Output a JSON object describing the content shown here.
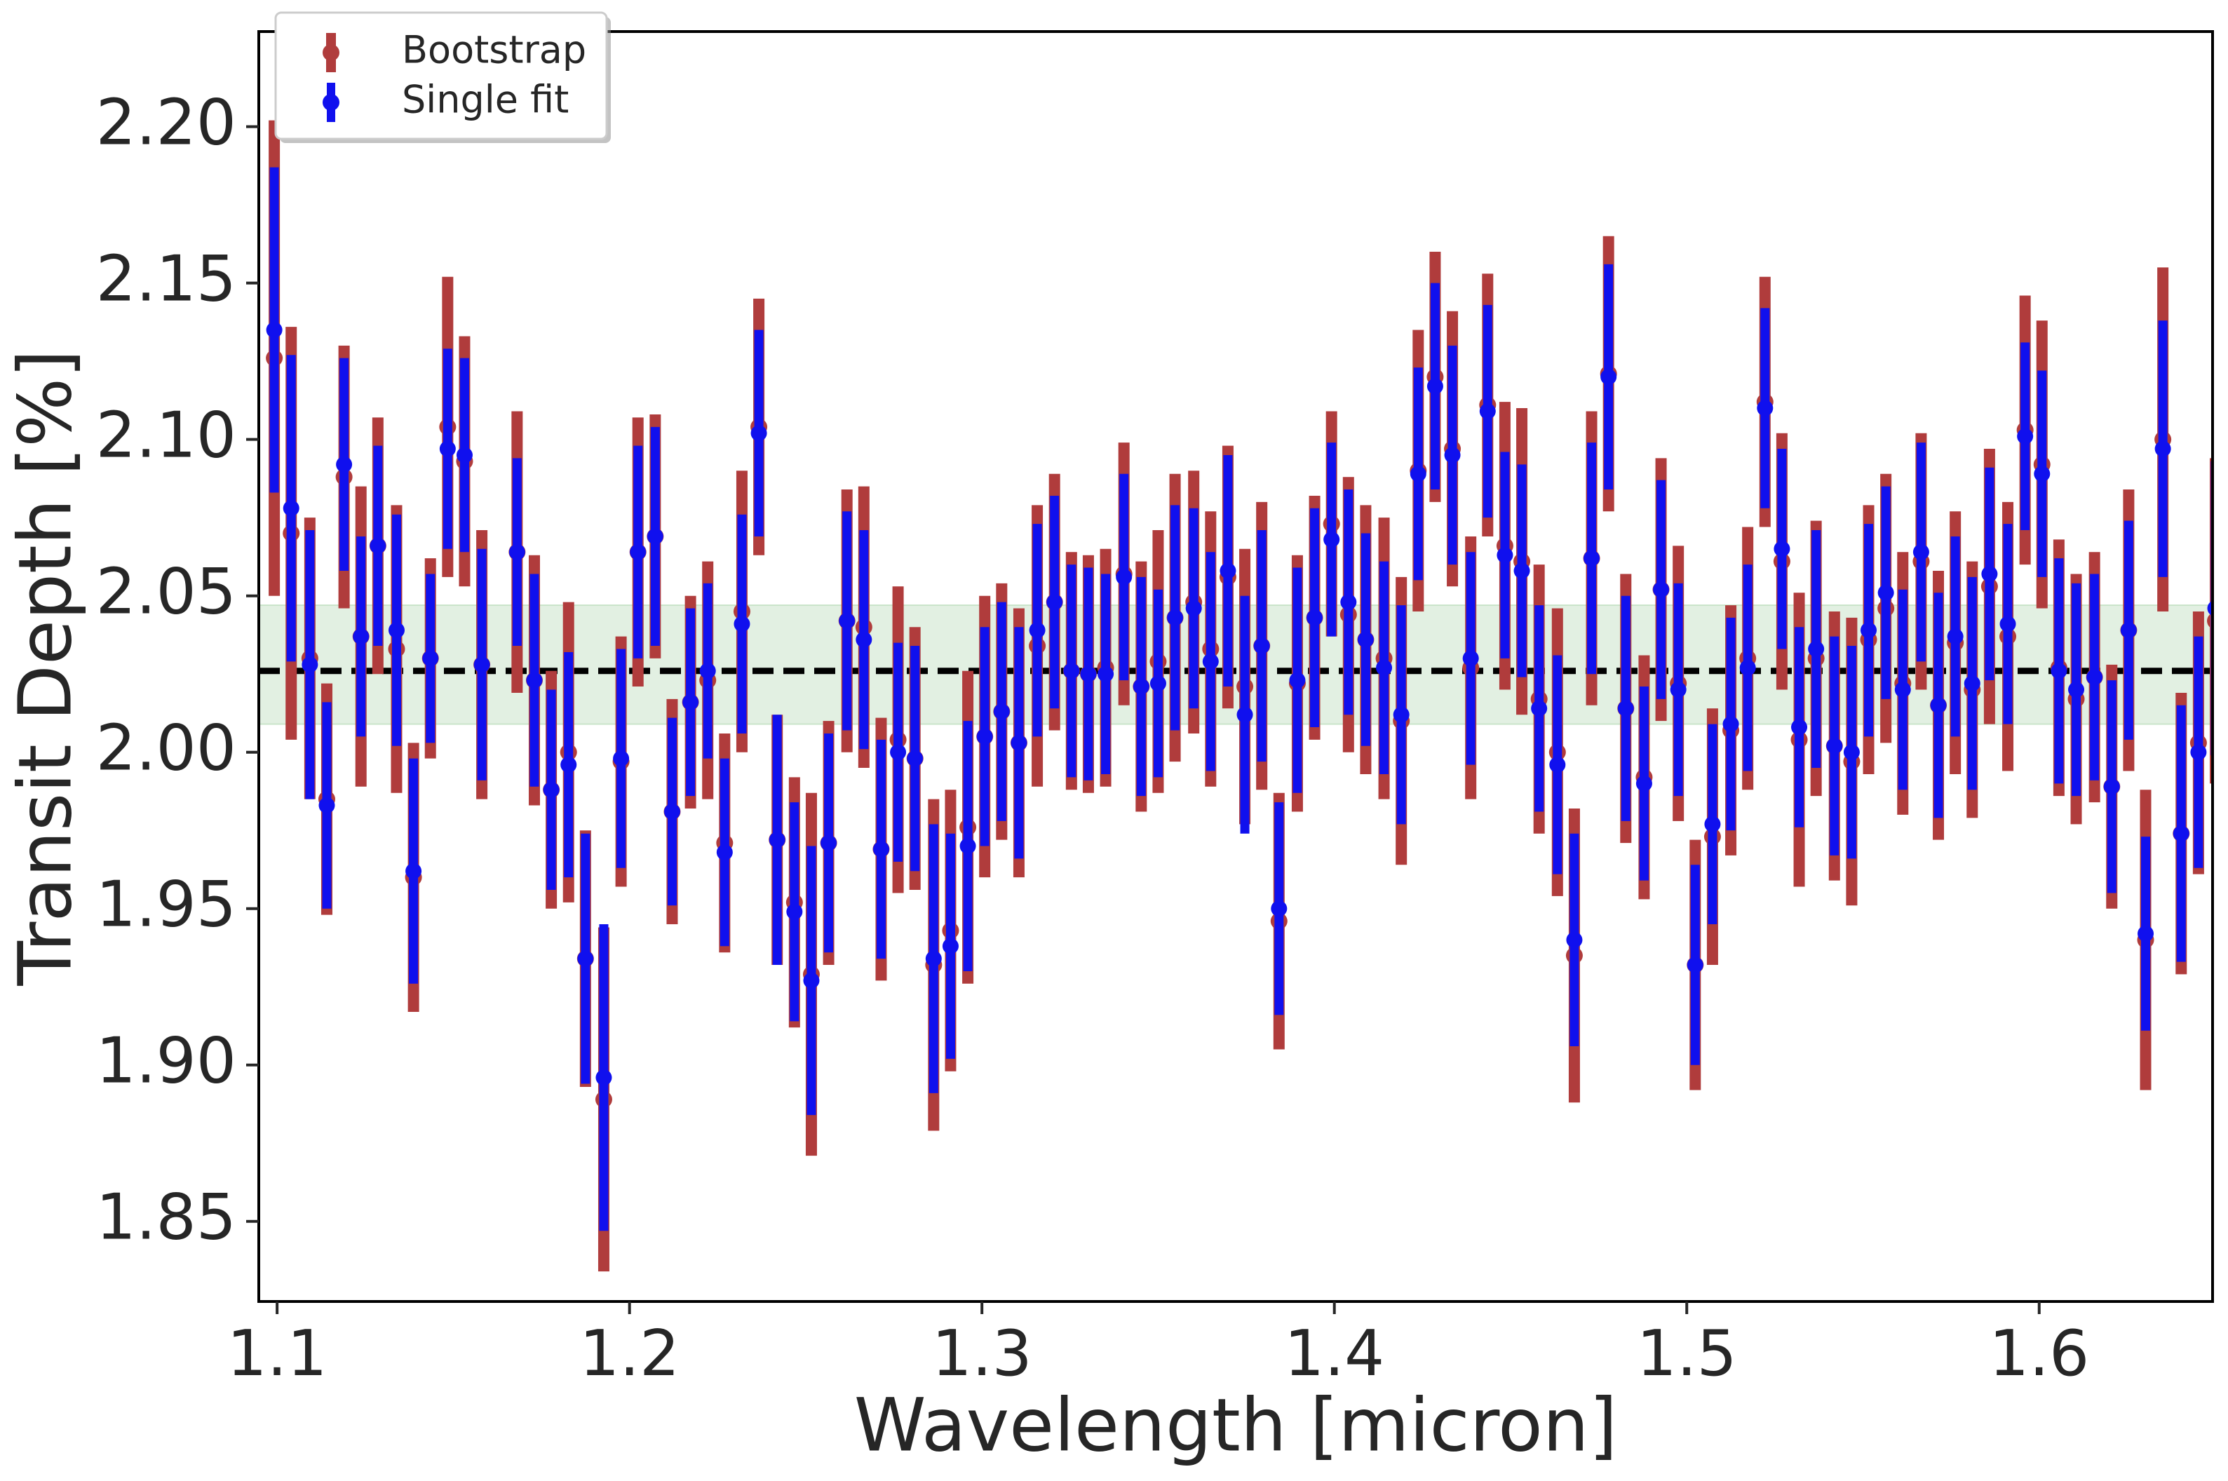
{
  "chart_data": {
    "type": "errorbar",
    "xlabel": "Wavelength [micron]",
    "ylabel": "Transit Depth [%]",
    "xlim": [
      1.0948,
      1.6492
    ],
    "ylim": [
      1.8244,
      2.2304
    ],
    "xticks": [
      1.1,
      1.2,
      1.3,
      1.4,
      1.5,
      1.6
    ],
    "yticks": [
      1.85,
      {
        "value": 1.9,
        "label": "1.90"
      },
      1.95,
      {
        "value": 2.0,
        "label": "2.00"
      },
      2.05,
      {
        "value": 2.1,
        "label": "2.10"
      },
      2.15,
      {
        "value": 2.2,
        "label": "2.20"
      }
    ],
    "hline": 2.026,
    "band": [
      2.009,
      2.047
    ],
    "band_color": "#d9ecd9",
    "hline_color": "#000000",
    "legend": "upper left",
    "x": [
      1.0992,
      1.104,
      1.1093,
      1.1141,
      1.119,
      1.1238,
      1.1286,
      1.1339,
      1.1387,
      1.1435,
      1.1484,
      1.1532,
      1.1581,
      1.1681,
      1.173,
      1.1778,
      1.1827,
      1.1875,
      1.1927,
      1.1976,
      1.2024,
      1.2073,
      1.2121,
      1.2173,
      1.2222,
      1.227,
      1.2319,
      1.2367,
      1.2419,
      1.2468,
      1.2516,
      1.2565,
      1.2617,
      1.2665,
      1.2714,
      1.2762,
      1.281,
      1.2863,
      1.2911,
      1.296,
      1.3008,
      1.3056,
      1.3105,
      1.3157,
      1.3206,
      1.3254,
      1.3302,
      1.3351,
      1.3403,
      1.3452,
      1.35,
      1.3548,
      1.3601,
      1.3649,
      1.3698,
      1.3746,
      1.3794,
      1.3843,
      1.3895,
      1.3944,
      1.3992,
      1.404,
      1.4089,
      1.4141,
      1.419,
      1.4238,
      1.4286,
      1.4335,
      1.4387,
      1.4435,
      1.4484,
      1.4532,
      1.4581,
      1.4633,
      1.4681,
      1.473,
      1.4778,
      1.4827,
      1.4879,
      1.4927,
      1.4976,
      1.5024,
      1.5073,
      1.5125,
      1.5173,
      1.5222,
      1.527,
      1.5319,
      1.5367,
      1.5419,
      1.5468,
      1.5516,
      1.5565,
      1.5613,
      1.5665,
      1.5714,
      1.5762,
      1.581,
      1.5859,
      1.5911,
      1.596,
      1.6008,
      1.6056,
      1.6105,
      1.6157,
      1.6206,
      1.6254,
      1.6302,
      1.6351,
      1.6403,
      1.6452,
      1.65
    ],
    "series": [
      {
        "name": "Bootstrap",
        "color": "#b03c3c",
        "values": [
          2.126,
          2.07,
          2.03,
          1.985,
          2.088,
          2.037,
          2.066,
          2.033,
          1.96,
          2.03,
          2.104,
          2.093,
          2.028,
          2.064,
          2.023,
          1.988,
          2.0,
          1.934,
          1.889,
          1.997,
          2.064,
          2.069,
          1.981,
          2.016,
          2.023,
          1.971,
          2.045,
          2.104,
          1.972,
          1.952,
          1.929,
          1.971,
          2.042,
          2.04,
          1.969,
          2.004,
          1.998,
          1.932,
          1.943,
          1.976,
          2.005,
          2.013,
          2.003,
          2.034,
          2.048,
          2.026,
          2.025,
          2.027,
          2.057,
          2.021,
          2.029,
          2.043,
          2.048,
          2.033,
          2.056,
          2.021,
          2.034,
          1.946,
          2.022,
          2.043,
          2.073,
          2.044,
          2.036,
          2.03,
          2.01,
          2.09,
          2.12,
          2.097,
          2.027,
          2.111,
          2.066,
          2.061,
          2.017,
          2.0,
          1.935,
          2.062,
          2.121,
          2.014,
          1.992,
          2.052,
          2.022,
          1.932,
          1.973,
          2.007,
          2.03,
          2.112,
          2.061,
          2.004,
          2.03,
          2.002,
          1.997,
          2.036,
          2.046,
          2.022,
          2.061,
          2.015,
          2.035,
          2.02,
          2.053,
          2.037,
          2.103,
          2.092,
          2.027,
          2.017,
          2.024,
          1.989,
          2.039,
          1.94,
          2.1,
          1.974,
          2.003,
          2.042
        ],
        "errors": [
          0.076,
          0.066,
          0.045,
          0.037,
          0.042,
          0.048,
          0.041,
          0.046,
          0.043,
          0.032,
          0.048,
          0.04,
          0.043,
          0.045,
          0.04,
          0.038,
          0.048,
          0.041,
          0.055,
          0.04,
          0.043,
          0.039,
          0.036,
          0.034,
          0.038,
          0.035,
          0.045,
          0.041,
          0.04,
          0.04,
          0.058,
          0.039,
          0.042,
          0.045,
          0.042,
          0.049,
          0.042,
          0.053,
          0.045,
          0.05,
          0.045,
          0.041,
          0.043,
          0.045,
          0.041,
          0.038,
          0.038,
          0.038,
          0.042,
          0.04,
          0.042,
          0.046,
          0.042,
          0.044,
          0.042,
          0.044,
          0.046,
          0.041,
          0.041,
          0.039,
          0.036,
          0.044,
          0.043,
          0.045,
          0.046,
          0.045,
          0.04,
          0.044,
          0.042,
          0.042,
          0.046,
          0.049,
          0.043,
          0.046,
          0.047,
          0.047,
          0.044,
          0.043,
          0.039,
          0.042,
          0.044,
          0.04,
          0.041,
          0.04,
          0.042,
          0.04,
          0.041,
          0.047,
          0.044,
          0.043,
          0.046,
          0.043,
          0.043,
          0.042,
          0.041,
          0.043,
          0.042,
          0.041,
          0.044,
          0.043,
          0.043,
          0.046,
          0.041,
          0.04,
          0.04,
          0.039,
          0.045,
          0.048,
          0.055,
          0.045,
          0.042,
          0.052
        ]
      },
      {
        "name": "Single fit",
        "color": "#1010ee",
        "values": [
          2.135,
          2.078,
          2.028,
          1.983,
          2.092,
          2.037,
          2.066,
          2.039,
          1.962,
          2.03,
          2.097,
          2.095,
          2.028,
          2.064,
          2.023,
          1.988,
          1.996,
          1.934,
          1.896,
          1.998,
          2.064,
          2.069,
          1.981,
          2.016,
          2.026,
          1.968,
          2.041,
          2.102,
          1.972,
          1.949,
          1.927,
          1.971,
          2.042,
          2.036,
          1.969,
          2.0,
          1.998,
          1.934,
          1.938,
          1.97,
          2.005,
          2.013,
          2.003,
          2.039,
          2.048,
          2.026,
          2.025,
          2.025,
          2.056,
          2.021,
          2.022,
          2.043,
          2.046,
          2.029,
          2.058,
          2.012,
          2.034,
          1.95,
          2.023,
          2.043,
          2.068,
          2.048,
          2.036,
          2.027,
          2.012,
          2.089,
          2.117,
          2.095,
          2.03,
          2.109,
          2.063,
          2.058,
          2.014,
          1.996,
          1.94,
          2.062,
          2.12,
          2.014,
          1.99,
          2.052,
          2.02,
          1.932,
          1.977,
          2.009,
          2.027,
          2.11,
          2.065,
          2.008,
          2.033,
          2.002,
          2.0,
          2.039,
          2.051,
          2.02,
          2.064,
          2.015,
          2.037,
          2.022,
          2.057,
          2.041,
          2.101,
          2.089,
          2.026,
          2.02,
          2.024,
          1.989,
          2.039,
          1.942,
          2.097,
          1.974,
          2.0,
          2.046
        ],
        "errors": [
          0.052,
          0.049,
          0.043,
          0.033,
          0.034,
          0.032,
          0.032,
          0.037,
          0.036,
          0.027,
          0.032,
          0.031,
          0.037,
          0.03,
          0.034,
          0.032,
          0.036,
          0.04,
          0.049,
          0.035,
          0.034,
          0.035,
          0.03,
          0.03,
          0.028,
          0.03,
          0.035,
          0.033,
          0.04,
          0.035,
          0.043,
          0.035,
          0.035,
          0.035,
          0.035,
          0.035,
          0.036,
          0.043,
          0.036,
          0.04,
          0.035,
          0.035,
          0.037,
          0.034,
          0.034,
          0.034,
          0.034,
          0.032,
          0.033,
          0.035,
          0.03,
          0.036,
          0.032,
          0.035,
          0.037,
          0.038,
          0.037,
          0.034,
          0.036,
          0.035,
          0.031,
          0.036,
          0.034,
          0.034,
          0.035,
          0.034,
          0.033,
          0.035,
          0.034,
          0.034,
          0.033,
          0.034,
          0.033,
          0.035,
          0.034,
          0.037,
          0.036,
          0.036,
          0.031,
          0.035,
          0.034,
          0.032,
          0.032,
          0.034,
          0.033,
          0.032,
          0.032,
          0.032,
          0.038,
          0.035,
          0.034,
          0.034,
          0.034,
          0.032,
          0.035,
          0.036,
          0.032,
          0.034,
          0.034,
          0.032,
          0.03,
          0.033,
          0.036,
          0.034,
          0.033,
          0.034,
          0.035,
          0.031,
          0.041,
          0.041,
          0.037,
          0.047
        ]
      }
    ]
  }
}
